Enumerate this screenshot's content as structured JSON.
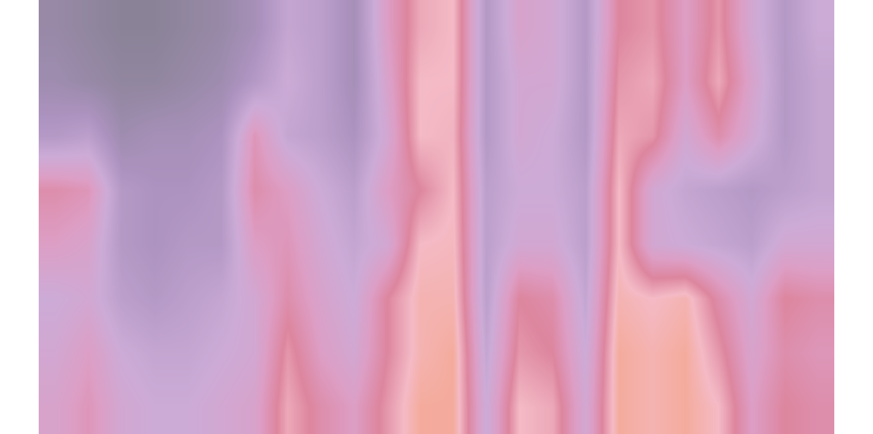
{
  "chart_data": {
    "type": "heatmap",
    "tick_labels": false,
    "grid": false,
    "zlim": [
      0,
      1
    ],
    "z": [
      [
        0.1,
        0.05,
        0.0,
        0.0,
        0.05,
        0.1,
        0.2,
        0.4,
        0.35,
        0.2,
        0.6,
        0.85,
        0.9,
        0.3,
        0.55,
        0.5,
        0.3,
        0.75,
        0.8,
        0.6,
        0.8,
        0.5,
        0.3,
        0.45
      ],
      [
        0.15,
        0.1,
        0.05,
        0.05,
        0.1,
        0.15,
        0.3,
        0.45,
        0.35,
        0.2,
        0.55,
        0.9,
        0.9,
        0.3,
        0.5,
        0.5,
        0.3,
        0.8,
        0.85,
        0.6,
        0.85,
        0.55,
        0.3,
        0.4
      ],
      [
        0.3,
        0.35,
        0.15,
        0.2,
        0.2,
        0.25,
        0.65,
        0.4,
        0.35,
        0.25,
        0.5,
        0.9,
        0.88,
        0.3,
        0.5,
        0.45,
        0.3,
        0.85,
        0.8,
        0.5,
        0.7,
        0.5,
        0.3,
        0.4
      ],
      [
        0.7,
        0.65,
        0.3,
        0.25,
        0.25,
        0.3,
        0.7,
        0.6,
        0.45,
        0.35,
        0.6,
        0.75,
        0.9,
        0.35,
        0.45,
        0.45,
        0.35,
        0.9,
        0.5,
        0.4,
        0.35,
        0.3,
        0.35,
        0.4
      ],
      [
        0.6,
        0.55,
        0.3,
        0.25,
        0.3,
        0.3,
        0.6,
        0.65,
        0.5,
        0.4,
        0.5,
        0.9,
        0.92,
        0.35,
        0.5,
        0.5,
        0.35,
        0.9,
        0.5,
        0.45,
        0.4,
        0.35,
        0.5,
        0.5
      ],
      [
        0.45,
        0.5,
        0.35,
        0.3,
        0.35,
        0.4,
        0.5,
        0.7,
        0.55,
        0.45,
        0.75,
        0.95,
        0.95,
        0.35,
        0.75,
        0.7,
        0.4,
        0.95,
        0.9,
        0.95,
        0.7,
        0.5,
        0.75,
        0.7
      ],
      [
        0.5,
        0.6,
        0.45,
        0.4,
        0.4,
        0.45,
        0.5,
        0.8,
        0.6,
        0.5,
        0.75,
        0.95,
        1.0,
        0.4,
        0.8,
        0.75,
        0.45,
        1.0,
        0.95,
        1.0,
        0.8,
        0.55,
        0.7,
        0.65
      ],
      [
        0.55,
        0.65,
        0.5,
        0.45,
        0.45,
        0.5,
        0.55,
        0.85,
        0.7,
        0.6,
        0.8,
        1.0,
        1.0,
        0.45,
        0.9,
        0.85,
        0.5,
        1.0,
        0.95,
        1.0,
        0.9,
        0.6,
        0.75,
        0.7
      ]
    ]
  }
}
